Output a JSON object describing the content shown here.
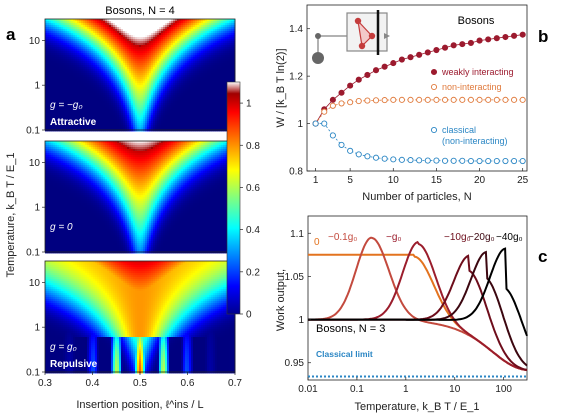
{
  "panel_labels": {
    "a": "a",
    "b": "b",
    "c": "c"
  },
  "chart_data": [
    {
      "id": "a",
      "type": "heatmap",
      "title": "Bosons,  N = 4",
      "xlabel": "Insertion position,  ℓ^ins / L",
      "ylabel": "Temperature,  k_B T / E_1",
      "xlim": [
        0.3,
        0.7
      ],
      "ylim": [
        0.1,
        30
      ],
      "yscale": "log",
      "x_ticks": [
        "0.3",
        "0.4",
        "0.5",
        "0.6",
        "0.7"
      ],
      "y_ticks": [
        "0.1",
        "1",
        "10"
      ],
      "colorbar": {
        "range": [
          0,
          1.1
        ],
        "ticks": [
          "0",
          "0.2",
          "0.4",
          "0.6",
          "0.8",
          "1"
        ],
        "colormap": "jet"
      },
      "subplots": [
        {
          "label": "g = −g₀",
          "tag": "Attractive",
          "peak": 1.25
        },
        {
          "label": "g = 0",
          "tag": "",
          "peak": 1.1
        },
        {
          "label": "g = g₀",
          "tag": "Repulsive",
          "peak": 1.0
        }
      ]
    },
    {
      "id": "b",
      "type": "scatter",
      "title": "Bosons",
      "xlabel": "Number of particles,  N",
      "ylabel": "W / [k_B T ln(2)]",
      "xlim": [
        0,
        25.5
      ],
      "ylim": [
        0.8,
        1.5
      ],
      "x_ticks": [
        "1",
        "5",
        "10",
        "15",
        "20",
        "25"
      ],
      "y_ticks": [
        "0.8",
        "1",
        "1.2",
        "1.4"
      ],
      "legend_position": "right",
      "series": [
        {
          "name": "weakly interacting",
          "color": "#9c1a2e",
          "filled": true,
          "x": [
            1,
            2,
            3,
            4,
            5,
            6,
            7,
            8,
            9,
            10,
            11,
            12,
            13,
            14,
            15,
            16,
            17,
            18,
            19,
            20,
            21,
            22,
            23,
            24,
            25
          ],
          "values": [
            1.0,
            1.06,
            1.1,
            1.13,
            1.16,
            1.185,
            1.205,
            1.225,
            1.24,
            1.255,
            1.27,
            1.28,
            1.29,
            1.3,
            1.31,
            1.32,
            1.33,
            1.335,
            1.34,
            1.35,
            1.355,
            1.36,
            1.365,
            1.37,
            1.375
          ]
        },
        {
          "name": "non-interacting",
          "color": "#e07a3c",
          "filled": false,
          "x": [
            1,
            2,
            3,
            4,
            5,
            6,
            7,
            8,
            9,
            10,
            11,
            12,
            13,
            14,
            15,
            16,
            17,
            18,
            19,
            20,
            21,
            22,
            23,
            24,
            25
          ],
          "values": [
            1.0,
            1.05,
            1.075,
            1.085,
            1.09,
            1.095,
            1.097,
            1.098,
            1.099,
            1.1,
            1.1,
            1.1,
            1.1,
            1.1,
            1.1,
            1.1,
            1.1,
            1.1,
            1.1,
            1.1,
            1.1,
            1.1,
            1.1,
            1.1,
            1.1
          ]
        },
        {
          "name": "classical\n(non-interacting)",
          "color": "#2a86c4",
          "filled": false,
          "x": [
            1,
            2,
            3,
            4,
            5,
            6,
            7,
            8,
            9,
            10,
            11,
            12,
            13,
            14,
            15,
            16,
            17,
            18,
            19,
            20,
            21,
            22,
            23,
            24,
            25
          ],
          "values": [
            1.0,
            1.0,
            0.95,
            0.91,
            0.885,
            0.87,
            0.862,
            0.856,
            0.852,
            0.849,
            0.847,
            0.846,
            0.845,
            0.844,
            0.844,
            0.843,
            0.843,
            0.843,
            0.842,
            0.842,
            0.842,
            0.842,
            0.842,
            0.842,
            0.842
          ]
        }
      ]
    },
    {
      "id": "c",
      "type": "line",
      "title": "Bosons,  N = 3",
      "xlabel": "Temperature,  k_B T / E_1",
      "ylabel": "Work output,",
      "xscale": "log",
      "xlim": [
        0.01,
        300
      ],
      "ylim": [
        0.93,
        1.12
      ],
      "x_ticks": [
        "0.01",
        "0.1",
        "1",
        "10",
        "100"
      ],
      "y_ticks": [
        "0.95",
        "1",
        "1.05",
        "1.1"
      ],
      "annotation": "Classical limit",
      "classical_limit": 0.934,
      "series": [
        {
          "name": "0",
          "color": "#e3731f",
          "peak_T": null,
          "peak": 1.075
        },
        {
          "name": "−0.1g₀",
          "color": "#c34a3e",
          "peak_T": 0.2,
          "peak": 1.095
        },
        {
          "name": "−g₀",
          "color": "#9b1d2c",
          "peak_T": 1.8,
          "peak": 1.09
        },
        {
          "name": "−10g₀",
          "color": "#6e0d1b",
          "peak_T": 20,
          "peak": 1.075
        },
        {
          "name": "−20g₀",
          "color": "#3c0710",
          "peak_T": 45,
          "peak": 1.08
        },
        {
          "name": "−40g₀",
          "color": "#000000",
          "peak_T": 110,
          "peak": 1.085
        }
      ]
    }
  ]
}
